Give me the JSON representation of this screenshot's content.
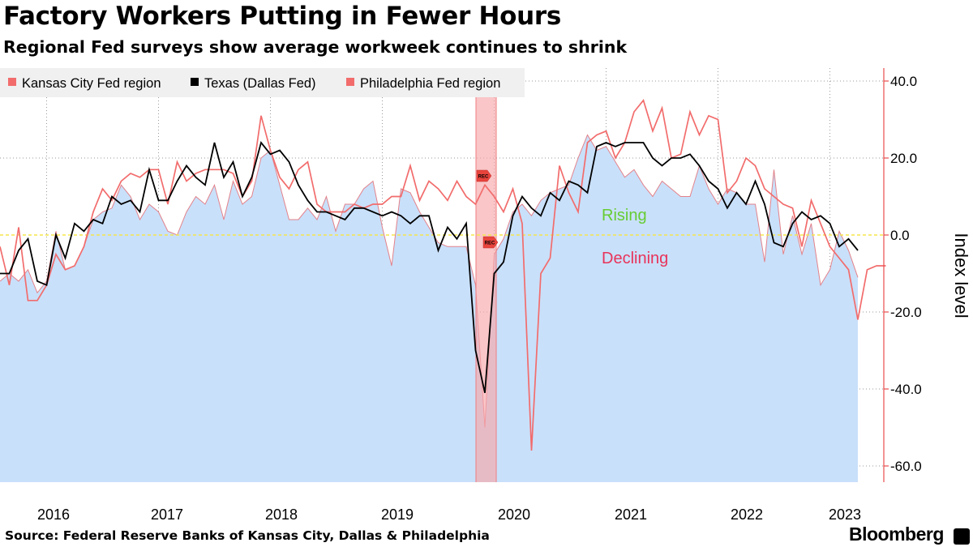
{
  "title": "Factory Workers Putting in Fewer Hours",
  "subtitle": "Regional Fed surveys show average workweek continues to shrink",
  "source": "Source: Federal Reserve Banks of Kansas City, Dallas & Philadelphia",
  "brand": "Bloomberg",
  "chart_data": {
    "type": "line",
    "ylabel": "Index level",
    "ylim": [
      -64,
      44
    ],
    "y_ticks": [
      40,
      20,
      0,
      -20,
      -40,
      -60
    ],
    "y_tick_labels": [
      "40.0",
      "20.0",
      "0.0",
      "-20.0",
      "-40.0",
      "-60.0"
    ],
    "x_start": "2015-08",
    "x_labels": [
      "2016",
      "2017",
      "2018",
      "2019",
      "2020",
      "2021",
      "2022",
      "2023"
    ],
    "legend_position": "top-left",
    "annotations": [
      "Rising",
      "Declining"
    ],
    "recession_label": "REC",
    "recession_shading": [
      "2020-02",
      "2020-04"
    ],
    "colors": {
      "kansas": "#f26c6c",
      "texas": "#000000",
      "philly": "#f26c6c",
      "area_fill": "#c9e0fa",
      "area_stroke": "#e3828a",
      "recession_band": "#f7a8aa",
      "zero_line": "#f5e64a",
      "rising": "#66cc33",
      "declining": "#e8335a",
      "axis": "#e84c4c"
    },
    "series": [
      {
        "name": "Kansas City Fed region",
        "kind": "line",
        "values": [
          -3,
          -13,
          2,
          -17,
          -17,
          -13,
          -5,
          -9,
          -8,
          -3,
          6,
          12,
          9,
          14,
          16,
          15,
          17,
          17,
          8,
          19,
          14,
          16,
          17,
          17,
          17,
          16,
          10,
          14,
          31,
          22,
          15,
          12,
          17,
          19,
          8,
          6,
          6,
          6,
          8,
          7,
          8,
          8,
          10,
          10,
          18,
          9,
          14,
          12,
          9,
          14,
          10,
          8,
          13,
          10,
          6,
          12,
          3,
          -56,
          -10,
          -6,
          18,
          11,
          6,
          24,
          26,
          27,
          20,
          24,
          32,
          35,
          27,
          33,
          20,
          21,
          32,
          26,
          31,
          30,
          11,
          14,
          20,
          18,
          12,
          10,
          8,
          7,
          -3,
          9,
          3,
          -3,
          -6,
          -9,
          -22,
          -9,
          -8,
          -8
        ]
      },
      {
        "name": "Texas (Dallas Fed)",
        "kind": "line",
        "values": [
          -10,
          -10,
          -4,
          -1,
          -12,
          -13,
          0,
          -6,
          3,
          1,
          4,
          3,
          10,
          8,
          9,
          6,
          17,
          9,
          9,
          14,
          18,
          15,
          13,
          24,
          15,
          19,
          10,
          15,
          24,
          21,
          22,
          19,
          13,
          9,
          6,
          6,
          5,
          4,
          7,
          7,
          6,
          5,
          6,
          5,
          3,
          5,
          5,
          -4,
          2,
          -1,
          3,
          -30,
          -41,
          -10,
          -7,
          5,
          10,
          7,
          5,
          11,
          9,
          14,
          13,
          11,
          23,
          24,
          23,
          24,
          24,
          24,
          20,
          18,
          20,
          20,
          21,
          18,
          14,
          12,
          7,
          11,
          8,
          14,
          8,
          -2,
          -3,
          3,
          6,
          4,
          5,
          3,
          -3,
          -1,
          -4
        ]
      },
      {
        "name": "Philadelphia Fed region",
        "kind": "area",
        "values": [
          -12,
          -10,
          -12,
          -9,
          -15,
          -12,
          1,
          -9,
          -8,
          -3,
          4,
          6,
          7,
          13,
          10,
          4,
          8,
          6,
          1,
          0,
          6,
          10,
          8,
          13,
          4,
          14,
          8,
          10,
          20,
          22,
          13,
          4,
          4,
          7,
          4,
          10,
          1,
          8,
          8,
          12,
          14,
          2,
          -8,
          12,
          11,
          6,
          2,
          -2,
          -3,
          -3,
          -3,
          -13,
          -50,
          -5,
          -1,
          6,
          8,
          5,
          9,
          11,
          12,
          13,
          20,
          26,
          22,
          23,
          19,
          15,
          17,
          13,
          10,
          14,
          12,
          10,
          10,
          18,
          12,
          8,
          12,
          11,
          8,
          8,
          -7,
          17,
          -5,
          5,
          -5,
          3,
          -13,
          -9,
          1,
          -4,
          -11
        ]
      }
    ]
  }
}
